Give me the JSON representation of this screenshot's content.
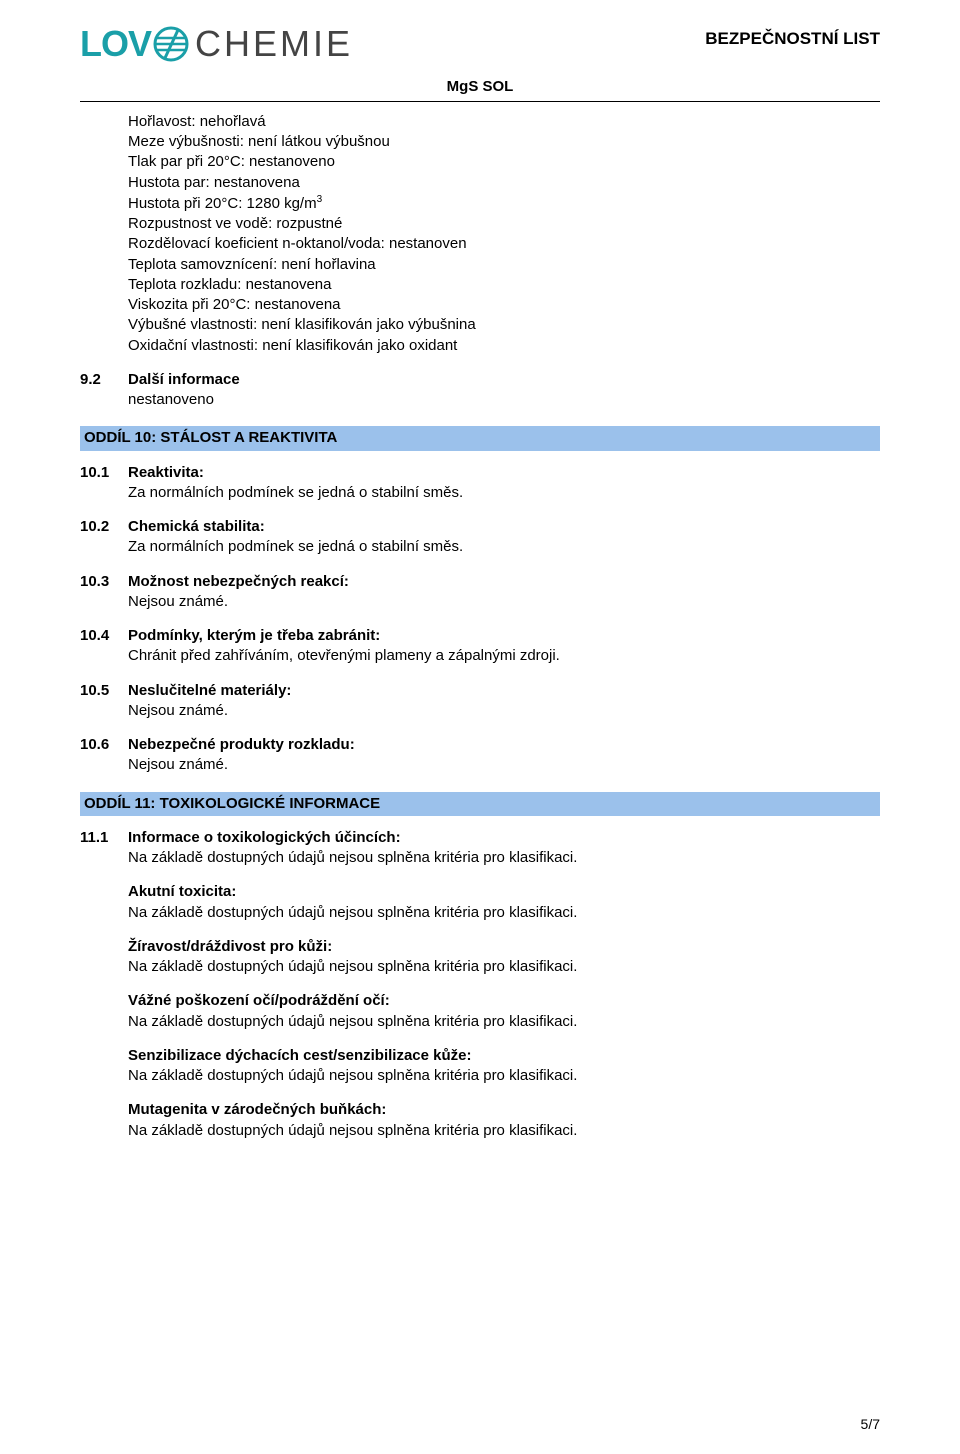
{
  "header": {
    "logo_lov": "LOV",
    "logo_chemie": "CHEMIE",
    "right_label": "BEZPEČNOSTNÍ LIST",
    "doc_title": "MgS SOL",
    "logo_teal": "#1a9fa8",
    "logo_grey": "#444444"
  },
  "props": [
    "Hořlavost: nehořlavá",
    "Meze výbušnosti: není látkou výbušnou",
    "Tlak par při 20°C: nestanoveno",
    "Hustota par: nestanovena",
    "Hustota při 20°C: 1280 kg/m",
    "Rozpustnost ve vodě: rozpustné",
    "Rozdělovací koeficient n-oktanol/voda: nestanoven",
    "Teplota samovznícení: není hořlavina",
    "Teplota rozkladu: nestanovena",
    "Viskozita při 20°C: nestanovena",
    "Výbušné vlastnosti: není klasifikován jako výbušnina",
    "Oxidační vlastnosti: není klasifikován jako oxidant"
  ],
  "props_sup_index": 4,
  "props_sup": "3",
  "s9_2": {
    "num": "9.2",
    "title": "Další informace",
    "text": "nestanoveno"
  },
  "sec10": {
    "heading": "ODDÍL 10: STÁLOST A REAKTIVITA",
    "items": [
      {
        "num": "10.1",
        "title": "Reaktivita:",
        "text": "Za normálních podmínek se jedná o stabilní směs."
      },
      {
        "num": "10.2",
        "title": "Chemická stabilita:",
        "text": "Za normálních podmínek se jedná o stabilní směs."
      },
      {
        "num": "10.3",
        "title": "Možnost nebezpečných reakcí:",
        "text": "Nejsou známé."
      },
      {
        "num": "10.4",
        "title": "Podmínky, kterým je třeba zabránit:",
        "text": "Chránit před zahříváním, otevřenými plameny a zápalnými zdroji."
      },
      {
        "num": "10.5",
        "title": "Neslučitelné materiály:",
        "text": "Nejsou známé."
      },
      {
        "num": "10.6",
        "title": "Nebezpečné produkty rozkladu:",
        "text": "Nejsou známé."
      }
    ]
  },
  "sec11": {
    "heading": "ODDÍL 11: TOXIKOLOGICKÉ INFORMACE",
    "lead": {
      "num": "11.1",
      "title": "Informace o toxikologických účincích:",
      "text": "Na základě dostupných údajů nejsou splněna kritéria pro klasifikaci."
    },
    "subs": [
      {
        "title": "Akutní toxicita:",
        "text": "Na základě dostupných údajů nejsou splněna kritéria pro klasifikaci."
      },
      {
        "title": "Žíravost/dráždivost pro kůži:",
        "text": "Na základě dostupných údajů nejsou splněna kritéria pro klasifikaci."
      },
      {
        "title": "Vážné poškození očí/podráždění očí:",
        "text": "Na základě dostupných údajů nejsou splněna kritéria pro klasifikaci."
      },
      {
        "title": "Senzibilizace dýchacích cest/senzibilizace kůže:",
        "text": "Na základě dostupných údajů nejsou splněna kritéria pro klasifikaci."
      },
      {
        "title": "Mutagenita v zárodečných buňkách:",
        "text": "Na základě dostupných údajů nejsou splněna kritéria pro klasifikaci."
      }
    ]
  },
  "page_num": "5/7",
  "colors": {
    "section_bg": "#9bc1eb"
  }
}
